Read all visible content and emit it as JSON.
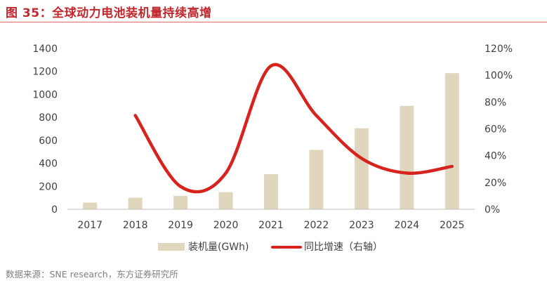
{
  "figure": {
    "title": "图 35：全球动力电池装机量持续高增",
    "source": "数据来源：SNE research，东方证券研究所"
  },
  "chart_data": {
    "type": "bar",
    "categories": [
      "2017",
      "2018",
      "2019",
      "2020",
      "2021",
      "2022",
      "2023",
      "2024",
      "2025"
    ],
    "left_axis": {
      "ylim": [
        0,
        1400
      ],
      "ticks": [
        0,
        200,
        400,
        600,
        800,
        1000,
        1200,
        1400
      ]
    },
    "right_axis": {
      "ylim": [
        0,
        120
      ],
      "ticks": [
        0,
        20,
        40,
        60,
        80,
        100,
        120
      ],
      "tick_labels": [
        "0%",
        "20%",
        "40%",
        "60%",
        "80%",
        "100%",
        "120%"
      ]
    },
    "series": [
      {
        "name": "装机量(GWh)",
        "type": "bar",
        "axis": "left",
        "color": "#e0d5bd",
        "values": [
          58,
          100,
          116,
          148,
          305,
          517,
          705,
          900,
          1185
        ]
      },
      {
        "name": "同比增速（右轴）",
        "type": "line",
        "axis": "right",
        "color": "#d7231e",
        "values": [
          null,
          70,
          17,
          27,
          107,
          70,
          38,
          27,
          32
        ]
      }
    ],
    "legend_position": "bottom-center",
    "grid": false
  }
}
